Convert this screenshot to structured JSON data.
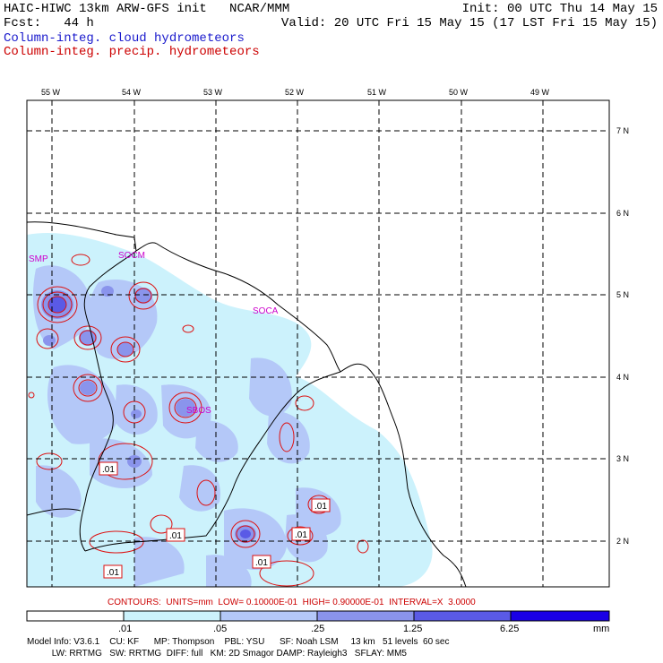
{
  "header": {
    "left_line1": "HAIC-HIWC 13km ARW-GFS init   NCAR/MMM",
    "left_line2": "Fcst:   44 h",
    "right_line1": "Init: 00 UTC Thu 14 May 15",
    "right_line2": "Valid: 20 UTC Fri 15 May 15 (17 LST Fri 15 May 15)",
    "field_cloud": "Column-integ. cloud hydrometeors",
    "field_precip": "Column-integ. precip. hydrometeors",
    "cloud_color": "#1a1acc",
    "precip_color": "#cc0000"
  },
  "map": {
    "lon_labels": [
      "55 W",
      "54 W",
      "53 W",
      "52 W",
      "51 W",
      "50 W",
      "49 W"
    ],
    "lat_labels": [
      "7 N",
      "6 N",
      "5 N",
      "4 N",
      "3 N",
      "2 N"
    ],
    "stations": [
      "SMP",
      "SOCM",
      "SOCA",
      "SBOS"
    ],
    "contour_labels": [
      ".01",
      ".01",
      ".01",
      ".01",
      ".01",
      ".01"
    ]
  },
  "contours_info": "CONTOURS:  UNITS=mm  LOW= 0.10000E-01  HIGH= 0.90000E-01  INTERVAL=X  3.0000",
  "colorbar": {
    "ticks": [
      ".01",
      ".05",
      ".25",
      "1.25",
      "6.25"
    ],
    "unit": "mm",
    "colors": [
      "#ffffff",
      "#ccf2fc",
      "#b4c8f8",
      "#8a94ec",
      "#5a5ae6",
      "#1a00e6"
    ]
  },
  "footer": {
    "line1": "Model Info: V3.6.1    CU: KF      MP: Thompson    PBL: YSU      SF: Noah LSM     13 km   51 levels  60 sec",
    "line2": "          LW: RRTMG   SW: RRTMG  DIFF: full   KM: 2D Smagor DAMP: Rayleigh3   SFLAY: MM5"
  }
}
